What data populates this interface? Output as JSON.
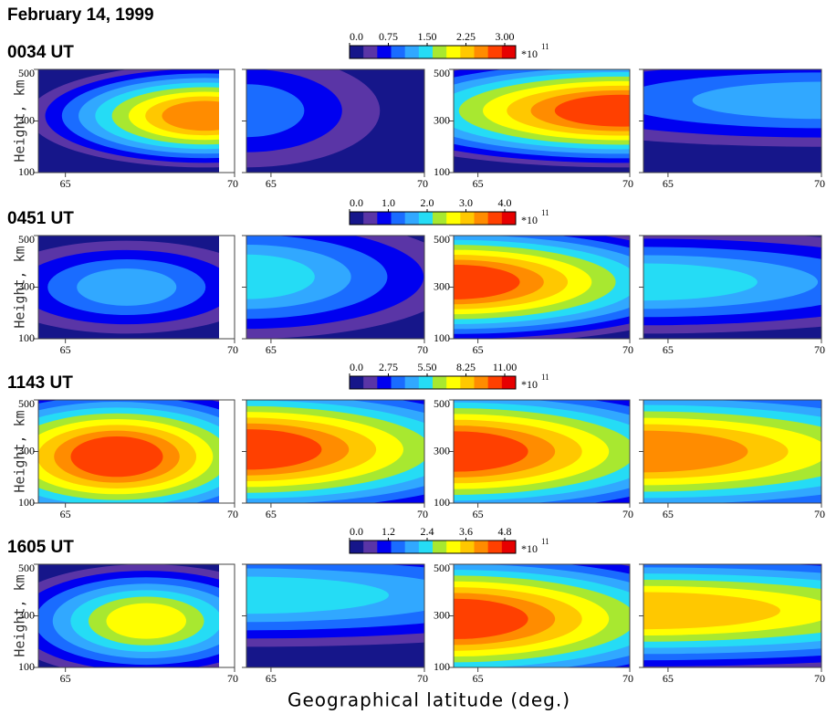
{
  "title": "February 14, 1999",
  "x_axis_label": "Geographical latitude (deg.)",
  "y_axis_label": "Height, km",
  "xlim": [
    64.2,
    70
  ],
  "xticks": [
    65,
    70
  ],
  "ylim": [
    100,
    500
  ],
  "yticks": [
    100,
    300,
    500
  ],
  "colormap": [
    "#16168a",
    "#5a35a6",
    "#0000f0",
    "#1a6cff",
    "#31a8ff",
    "#25dcf5",
    "#a8e830",
    "#ffff00",
    "#ffc800",
    "#ff8c00",
    "#ff4000",
    "#e60000"
  ],
  "rows": [
    {
      "label": "0034 UT",
      "colorbar": {
        "ticks": [
          {
            "value": 0,
            "label": "0.0"
          },
          0.75,
          {
            "value": 1.5,
            "label": "1.50"
          },
          2.25,
          {
            "value": 3,
            "label": "3.00"
          }
        ],
        "multiplier": "*10",
        "exponent": "11"
      }
    },
    {
      "label": "0451 UT",
      "colorbar": {
        "ticks": [
          {
            "value": 0,
            "label": "0.0"
          },
          {
            "value": 1,
            "label": "1.0"
          },
          {
            "value": 2,
            "label": "2.0"
          },
          {
            "value": 3,
            "label": "3.0"
          },
          {
            "value": 4,
            "label": "4.0"
          }
        ],
        "multiplier": "*10",
        "exponent": "11"
      }
    },
    {
      "label": "1143 UT",
      "colorbar": {
        "ticks": [
          {
            "value": 0,
            "label": "0.0"
          },
          2.75,
          {
            "value": 5.5,
            "label": "5.50"
          },
          8.25,
          {
            "value": 11,
            "label": "11.00"
          }
        ],
        "multiplier": "*10",
        "exponent": "11"
      }
    },
    {
      "label": "1605 UT",
      "colorbar": {
        "ticks": [
          {
            "value": 0,
            "label": "0.0"
          },
          1.2,
          2.4,
          3.6,
          4.8
        ],
        "multiplier": "*10",
        "exponent": "11"
      }
    }
  ]
}
